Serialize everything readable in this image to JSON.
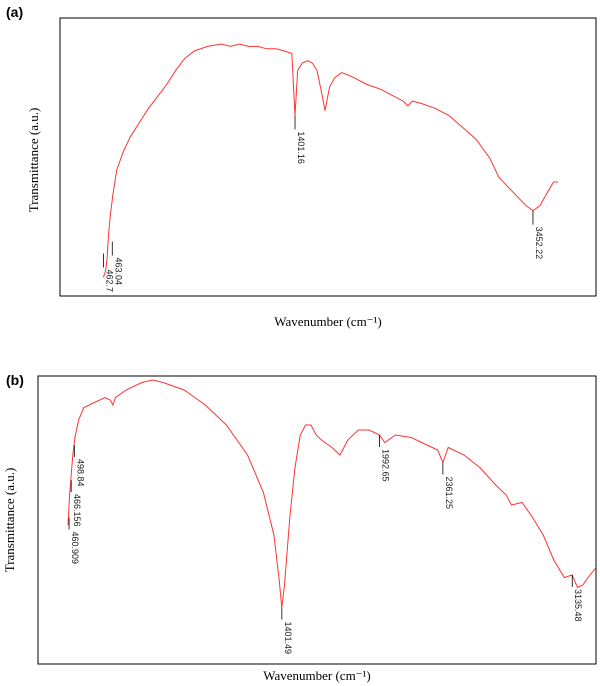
{
  "chart_data": [
    {
      "panel": "(a)",
      "type": "line",
      "xlabel": "Wavenumber (cm⁻¹)",
      "ylabel": "Transmittance (a.u.)",
      "x_direction": "increasing left to right",
      "curve_color": "#ff3333",
      "grid": false,
      "points": [
        [
          0.0,
          0.98
        ],
        [
          0.3,
          0.97
        ],
        [
          0.6,
          0.95
        ],
        [
          0.9,
          0.9
        ],
        [
          1.2,
          0.8
        ],
        [
          1.6,
          0.72
        ],
        [
          2.2,
          0.63
        ],
        [
          3.0,
          0.53
        ],
        [
          4.5,
          0.45
        ],
        [
          6,
          0.39
        ],
        [
          8,
          0.33
        ],
        [
          10,
          0.27
        ],
        [
          12,
          0.22
        ],
        [
          14,
          0.17
        ],
        [
          16,
          0.11
        ],
        [
          18,
          0.06
        ],
        [
          20,
          0.03
        ],
        [
          23,
          0.01
        ],
        [
          26,
          0.0
        ],
        [
          28,
          0.01
        ],
        [
          30,
          0.0
        ],
        [
          32,
          0.01
        ],
        [
          34,
          0.01
        ],
        [
          36,
          0.02
        ],
        [
          38,
          0.02
        ],
        [
          40,
          0.03
        ],
        [
          41.5,
          0.04
        ],
        [
          42.2,
          0.3
        ],
        [
          42.8,
          0.11
        ],
        [
          43.8,
          0.08
        ],
        [
          45,
          0.07
        ],
        [
          46,
          0.08
        ],
        [
          47,
          0.11
        ],
        [
          48,
          0.2
        ],
        [
          48.8,
          0.28
        ],
        [
          49.8,
          0.18
        ],
        [
          51,
          0.14
        ],
        [
          52.5,
          0.12
        ],
        [
          55,
          0.14
        ],
        [
          58,
          0.17
        ],
        [
          61,
          0.19
        ],
        [
          64,
          0.22
        ],
        [
          66,
          0.24
        ],
        [
          67,
          0.26
        ],
        [
          68,
          0.24
        ],
        [
          70,
          0.25
        ],
        [
          73,
          0.27
        ],
        [
          76,
          0.3
        ],
        [
          79,
          0.35
        ],
        [
          82,
          0.4
        ],
        [
          85,
          0.48
        ],
        [
          87,
          0.56
        ],
        [
          89,
          0.6
        ],
        [
          91,
          0.64
        ],
        [
          93,
          0.68
        ],
        [
          94.5,
          0.7
        ],
        [
          96,
          0.68
        ],
        [
          97.5,
          0.63
        ],
        [
          99,
          0.58
        ],
        [
          100,
          0.58
        ]
      ],
      "peaks": [
        {
          "label": "462.7",
          "x": 1.0,
          "y": 0.88
        },
        {
          "label": "463.04",
          "x": 1.6,
          "y": 0.83
        },
        {
          "label": "1401.16",
          "x": 42.2,
          "y": 0.3
        },
        {
          "label": "3452.22",
          "x": 94.5,
          "y": 0.7
        }
      ]
    },
    {
      "panel": "(b)",
      "type": "line",
      "xlabel": "Wavenumber (cm⁻¹)",
      "ylabel": "Transmittance (a.u.)",
      "x_direction": "increasing left to right",
      "curve_color": "#ff3333",
      "grid": false,
      "points": [
        [
          0.0,
          0.58
        ],
        [
          0.3,
          0.46
        ],
        [
          0.6,
          0.38
        ],
        [
          0.9,
          0.3
        ],
        [
          1.3,
          0.23
        ],
        [
          2,
          0.16
        ],
        [
          3,
          0.11
        ],
        [
          5,
          0.09
        ],
        [
          7,
          0.07
        ],
        [
          8,
          0.08
        ],
        [
          8.5,
          0.1
        ],
        [
          9,
          0.07
        ],
        [
          11,
          0.04
        ],
        [
          14,
          0.01
        ],
        [
          16,
          0.0
        ],
        [
          18,
          0.01
        ],
        [
          22,
          0.04
        ],
        [
          26,
          0.1
        ],
        [
          30,
          0.18
        ],
        [
          34,
          0.3
        ],
        [
          37,
          0.45
        ],
        [
          39,
          0.62
        ],
        [
          40,
          0.8
        ],
        [
          40.5,
          0.91
        ],
        [
          41,
          0.82
        ],
        [
          42,
          0.55
        ],
        [
          43,
          0.35
        ],
        [
          44,
          0.22
        ],
        [
          45,
          0.18
        ],
        [
          46,
          0.18
        ],
        [
          47,
          0.22
        ],
        [
          48,
          0.24
        ],
        [
          50,
          0.27
        ],
        [
          51.5,
          0.3
        ],
        [
          53,
          0.24
        ],
        [
          55,
          0.2
        ],
        [
          57,
          0.2
        ],
        [
          59,
          0.22
        ],
        [
          60,
          0.25
        ],
        [
          62,
          0.22
        ],
        [
          65,
          0.23
        ],
        [
          68,
          0.26
        ],
        [
          70,
          0.28
        ],
        [
          71,
          0.33
        ],
        [
          72,
          0.27
        ],
        [
          75,
          0.3
        ],
        [
          78,
          0.35
        ],
        [
          81,
          0.42
        ],
        [
          83,
          0.46
        ],
        [
          84,
          0.5
        ],
        [
          86,
          0.49
        ],
        [
          88,
          0.55
        ],
        [
          90,
          0.62
        ],
        [
          92,
          0.72
        ],
        [
          94,
          0.79
        ],
        [
          95.5,
          0.78
        ],
        [
          96.5,
          0.83
        ],
        [
          97.5,
          0.82
        ],
        [
          98.5,
          0.79
        ],
        [
          100,
          0.75
        ]
      ],
      "peaks": [
        {
          "label": "460.909",
          "x": 0.2,
          "y": 0.55
        },
        {
          "label": "466.156",
          "x": 0.6,
          "y": 0.4
        },
        {
          "label": "498.84",
          "x": 1.2,
          "y": 0.26
        },
        {
          "label": "1401.49",
          "x": 40.5,
          "y": 0.91
        },
        {
          "label": "1992.65",
          "x": 59.0,
          "y": 0.22
        },
        {
          "label": "2361.25",
          "x": 71.0,
          "y": 0.33
        },
        {
          "label": "3135.48",
          "x": 95.5,
          "y": 0.78
        }
      ]
    }
  ]
}
